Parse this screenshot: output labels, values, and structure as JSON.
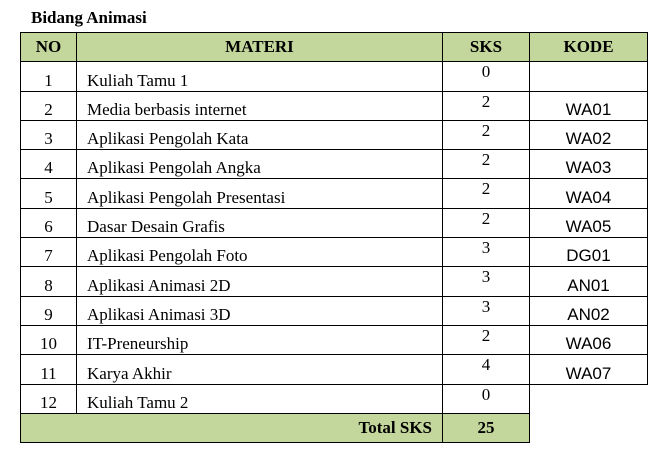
{
  "title": "Bidang Animasi",
  "headers": {
    "no": "NO",
    "materi": "MATERI",
    "sks": "SKS",
    "kode": "KODE"
  },
  "rows": [
    {
      "no": "1",
      "materi": "Kuliah Tamu 1",
      "sks": "0",
      "kode": ""
    },
    {
      "no": "2",
      "materi": "Media berbasis internet",
      "sks": "2",
      "kode": "WA01"
    },
    {
      "no": "3",
      "materi": "Aplikasi Pengolah Kata",
      "sks": "2",
      "kode": "WA02"
    },
    {
      "no": "4",
      "materi": "Aplikasi Pengolah Angka",
      "sks": "2",
      "kode": "WA03"
    },
    {
      "no": "5",
      "materi": "Aplikasi Pengolah Presentasi",
      "sks": "2",
      "kode": "WA04"
    },
    {
      "no": "6",
      "materi": "Dasar Desain Grafis",
      "sks": "2",
      "kode": "WA05"
    },
    {
      "no": "7",
      "materi": "Aplikasi Pengolah Foto",
      "sks": "3",
      "kode": "DG01"
    },
    {
      "no": "8",
      "materi": "Aplikasi Animasi 2D",
      "sks": "3",
      "kode": "AN01"
    },
    {
      "no": "9",
      "materi": "Aplikasi Animasi 3D",
      "sks": "3",
      "kode": "AN02"
    },
    {
      "no": "10",
      "materi": "IT-Preneurship",
      "sks": "2",
      "kode": "WA06"
    },
    {
      "no": "11",
      "materi": "Karya Akhir",
      "sks": "4",
      "kode": "WA07"
    },
    {
      "no": "12",
      "materi": "Kuliah Tamu 2",
      "sks": "0",
      "kode": ""
    }
  ],
  "total": {
    "label": "Total SKS",
    "value": "25"
  }
}
